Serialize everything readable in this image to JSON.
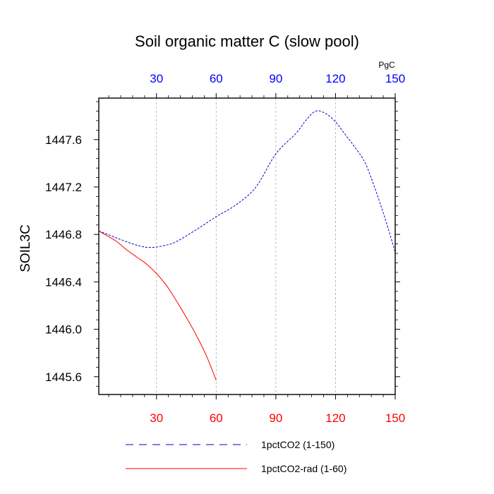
{
  "chart_data": {
    "type": "line",
    "title": "Soil organic matter C (slow pool)",
    "ylabel": "SOIL3C",
    "xlabel": "",
    "top_axis_unit": "PgC",
    "xlim": [
      1,
      150
    ],
    "ylim": [
      1445.45,
      1447.95
    ],
    "x_ticks": [
      30,
      60,
      90,
      120,
      150
    ],
    "x_tick_labels": [
      "30",
      "60",
      "90",
      "120",
      "150"
    ],
    "y_ticks": [
      1445.6,
      1446.0,
      1446.4,
      1446.8,
      1447.2,
      1447.6
    ],
    "y_tick_labels": [
      "1445.6",
      "1446.0",
      "1446.4",
      "1446.8",
      "1447.2",
      "1447.6"
    ],
    "vertical_grid": true,
    "legend_position": "bottom",
    "colors": {
      "top_axis_labels": "#0000ff",
      "bottom_axis_labels": "#ff0000"
    },
    "series": [
      {
        "name": "1pctCO2 (1-150)",
        "color": "#0000cc",
        "dash": "dashed",
        "x": [
          1,
          10,
          20,
          27,
          35,
          40,
          50,
          60,
          70,
          80,
          90,
          100,
          105,
          110,
          115,
          120,
          125,
          130,
          135,
          140,
          145,
          150
        ],
        "y": [
          1446.83,
          1446.77,
          1446.71,
          1446.69,
          1446.71,
          1446.74,
          1446.84,
          1446.95,
          1447.05,
          1447.2,
          1447.48,
          1447.65,
          1447.76,
          1447.84,
          1447.82,
          1447.75,
          1447.64,
          1447.53,
          1447.4,
          1447.18,
          1446.93,
          1446.65
        ]
      },
      {
        "name": "1pctCO2-rad (1-60)",
        "color": "#ff0000",
        "dash": "solid",
        "x": [
          1,
          5,
          10,
          15,
          20,
          25,
          30,
          35,
          40,
          45,
          50,
          55,
          60
        ],
        "y": [
          1446.83,
          1446.79,
          1446.74,
          1446.67,
          1446.61,
          1446.55,
          1446.47,
          1446.37,
          1446.24,
          1446.1,
          1445.95,
          1445.78,
          1445.57
        ]
      }
    ]
  }
}
